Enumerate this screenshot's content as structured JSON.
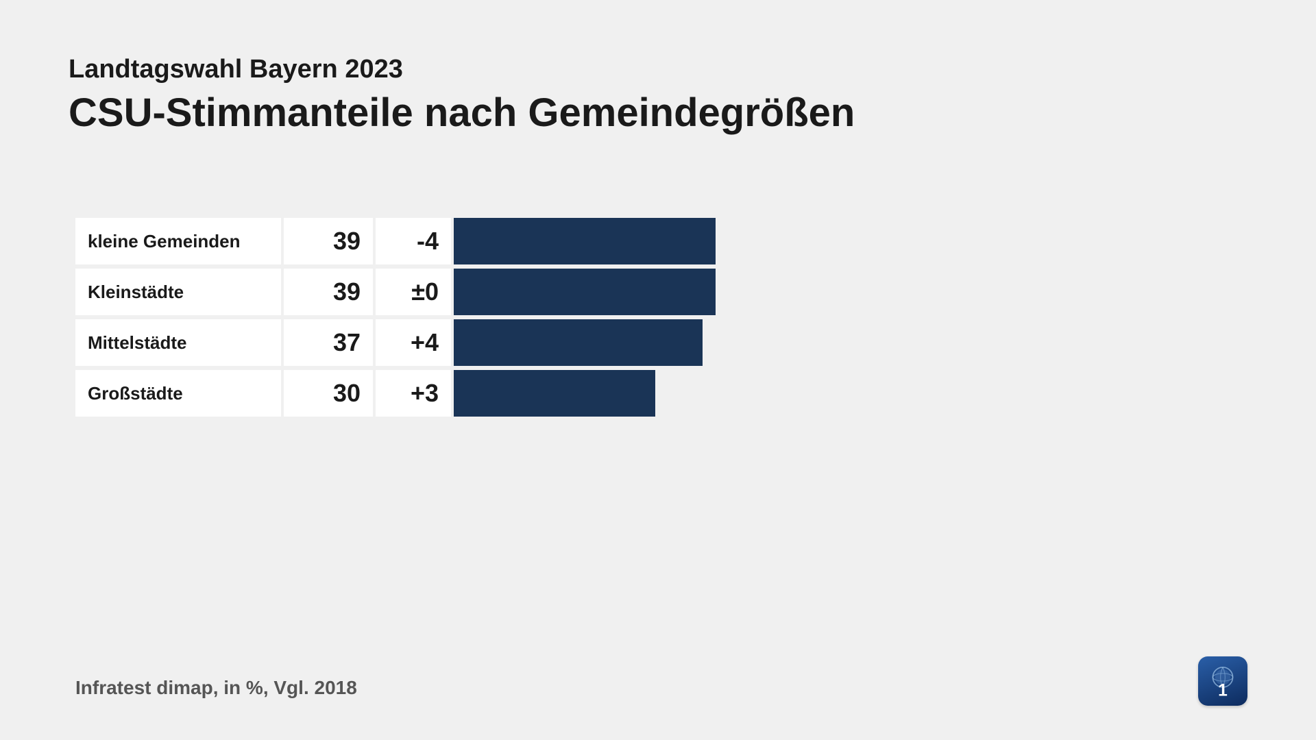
{
  "header": {
    "subtitle": "Landtagswahl Bayern 2023",
    "title": "CSU-Stimmanteile nach Gemeindegrößen"
  },
  "chart": {
    "type": "bar",
    "bar_color": "#1a3456",
    "cell_background": "#ffffff",
    "page_background": "#f0f0f0",
    "label_fontsize": 26,
    "value_fontsize": 36,
    "max_value": 50,
    "rows": [
      {
        "label": "kleine Gemeinden",
        "value": 39,
        "change": "-4"
      },
      {
        "label": "Kleinstädte",
        "value": 39,
        "change": "±0"
      },
      {
        "label": "Mittelstädte",
        "value": 37,
        "change": "+4"
      },
      {
        "label": "Großstädte",
        "value": 30,
        "change": "+3"
      }
    ]
  },
  "footer": {
    "text": "Infratest dimap, in %, Vgl. 2018"
  },
  "logo": {
    "name": "ard-logo"
  }
}
